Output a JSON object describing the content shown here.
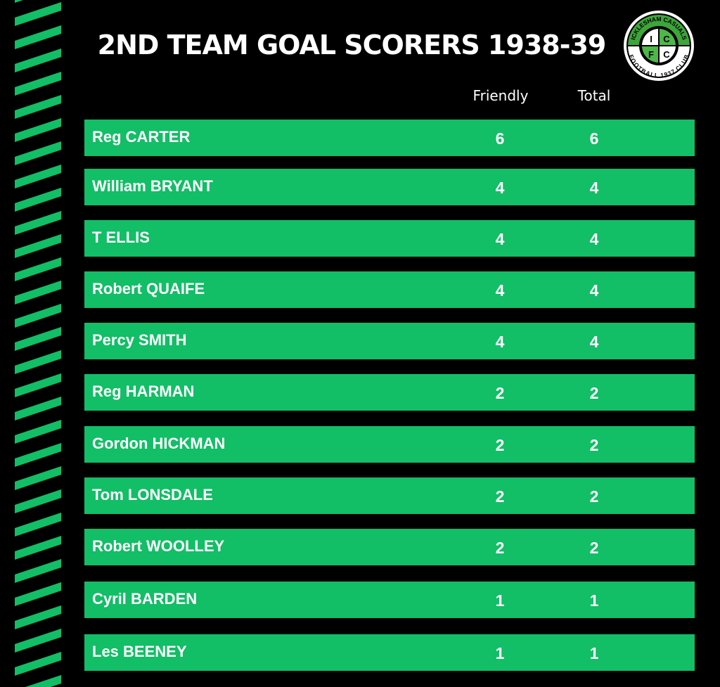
{
  "title": "2ND TEAM GOAL SCORERS 1938-39",
  "logo": {
    "top_text": "ICKLESHAM CASUALS",
    "bottom_text": "FOOTBALL 1937 CLUB",
    "letters": [
      "I",
      "C",
      "F",
      "C"
    ]
  },
  "colors": {
    "accent": "#12be66",
    "background": "#000000"
  },
  "columns": [
    "Friendly",
    "Total"
  ],
  "rows": [
    {
      "name": "Reg CARTER",
      "friendly": "6",
      "total": "6"
    },
    {
      "name": "William BRYANT",
      "friendly": "4",
      "total": "4"
    },
    {
      "name": "T ELLIS",
      "friendly": "4",
      "total": "4"
    },
    {
      "name": "Robert QUAIFE",
      "friendly": "4",
      "total": "4"
    },
    {
      "name": "Percy SMITH",
      "friendly": "4",
      "total": "4"
    },
    {
      "name": "Reg HARMAN",
      "friendly": "2",
      "total": "2"
    },
    {
      "name": "Gordon HICKMAN",
      "friendly": "2",
      "total": "2"
    },
    {
      "name": "Tom LONSDALE",
      "friendly": "2",
      "total": "2"
    },
    {
      "name": "Robert WOOLLEY",
      "friendly": "2",
      "total": "2"
    },
    {
      "name": "Cyril BARDEN",
      "friendly": "1",
      "total": "1"
    },
    {
      "name": "Les BEENEY",
      "friendly": "1",
      "total": "1"
    }
  ]
}
